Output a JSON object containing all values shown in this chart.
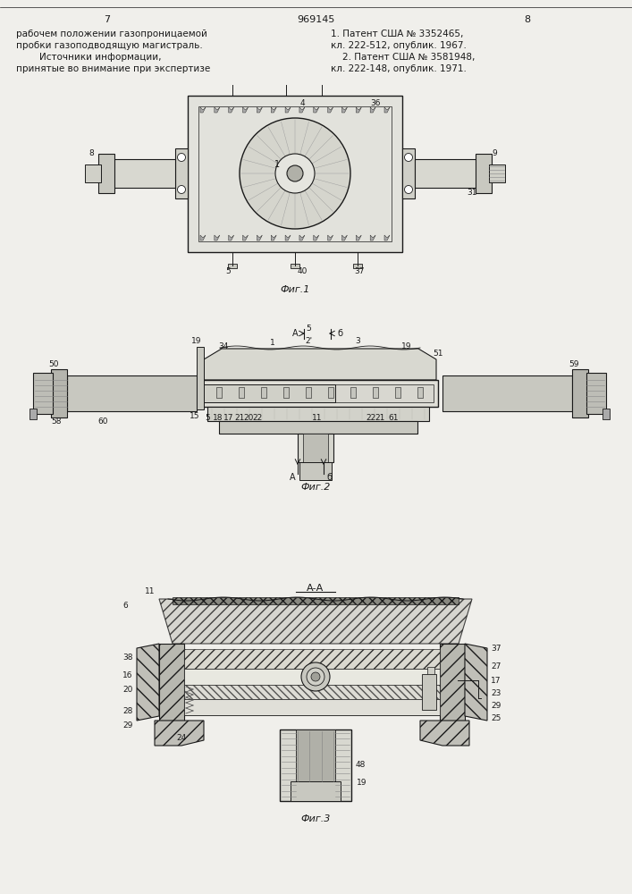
{
  "title": "969145",
  "page_left": "7",
  "page_right": "8",
  "background_color": "#f0efeb",
  "text_color": "#1a1a1a",
  "left_text_lines": [
    "рабочем положении газопроницаемой",
    "пробки газоподводящую магистраль.",
    "        Источники информации,",
    "принятые во внимание при экспертизе"
  ],
  "right_text_lines": [
    "1. Патент США № 3352465,",
    "кл. 222-512, опублик. 1967.",
    "    2. Патент США № 3581948,",
    "кл. 222-148, опублик. 1971."
  ],
  "fig1_caption": "Фиг.1",
  "fig2_caption": "Фиг.2",
  "fig3_caption": "Фиг.3",
  "fig3_title": "А-А",
  "line_color": "#1a1a1a"
}
